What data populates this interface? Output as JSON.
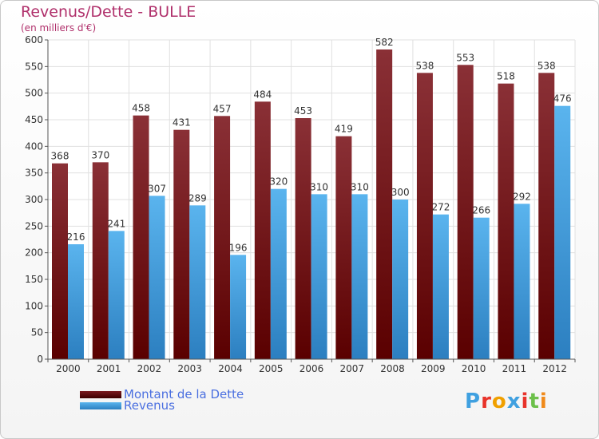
{
  "header": {
    "title": "Revenus/Dette - BULLE",
    "subtitle": "(en milliers d'€)"
  },
  "logo": {
    "text": "Proxiti"
  },
  "colors": {
    "dette": "#6b0f16",
    "revenus": "#3f9ce0",
    "axis_text": "#333333",
    "grid": "#e0e0e0"
  },
  "chart_data": {
    "type": "bar",
    "title": "Revenus/Dette - BULLE",
    "subtitle": "(en milliers d'€)",
    "xlabel": "",
    "ylabel": "",
    "ylim": [
      0,
      600
    ],
    "yticks": [
      0,
      50,
      100,
      150,
      200,
      250,
      300,
      350,
      400,
      450,
      500,
      550,
      600
    ],
    "grid": true,
    "legend_position": "bottom-left",
    "categories": [
      "2000",
      "2001",
      "2002",
      "2003",
      "2004",
      "2005",
      "2006",
      "2007",
      "2008",
      "2009",
      "2010",
      "2011",
      "2012"
    ],
    "series": [
      {
        "name": "Montant de la Dette",
        "values": [
          368,
          370,
          458,
          431,
          457,
          484,
          453,
          419,
          582,
          538,
          553,
          518,
          538
        ]
      },
      {
        "name": "Revenus",
        "values": [
          216,
          241,
          307,
          289,
          196,
          320,
          310,
          310,
          300,
          272,
          266,
          292,
          476
        ]
      }
    ]
  }
}
